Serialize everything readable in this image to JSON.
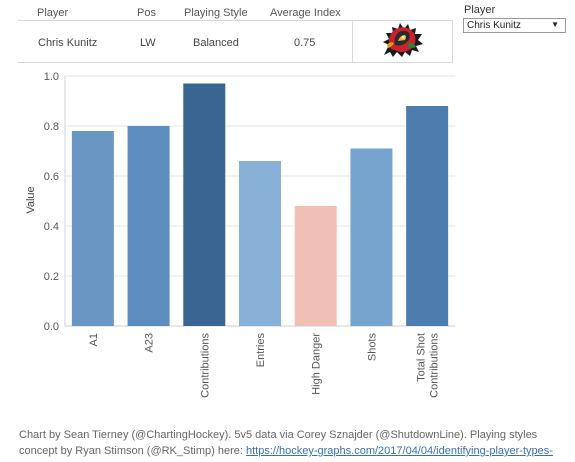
{
  "table": {
    "headers": [
      "Player",
      "Pos",
      "Playing Style",
      "Average Index"
    ],
    "row": [
      "Chris Kunitz",
      "LW",
      "Balanced",
      "0.75"
    ]
  },
  "logo_icon": "blackhawks-logo",
  "player_filter": {
    "label": "Player",
    "selected": "Chris Kunitz"
  },
  "chart_data": {
    "type": "bar",
    "ylabel": "Value",
    "xlabel": "",
    "ylim": [
      0,
      1.0
    ],
    "yticks": [
      "0.0",
      "0.2",
      "0.4",
      "0.6",
      "0.8",
      "1.0"
    ],
    "categories": [
      "A1",
      "A23",
      "Contributions",
      "Entries",
      "High Danger",
      "Shots",
      "Total Shot Contributions"
    ],
    "tick_labels": [
      [
        "A1"
      ],
      [
        "A23"
      ],
      [
        "Contributions"
      ],
      [
        "Entries"
      ],
      [
        "High Danger"
      ],
      [
        "Shots"
      ],
      [
        "Total Shot",
        "Contributions"
      ]
    ],
    "values": [
      0.78,
      0.8,
      0.97,
      0.66,
      0.48,
      0.71,
      0.88
    ],
    "colors": [
      "#6a96c4",
      "#5d8cbe",
      "#3a6592",
      "#89b1d8",
      "#f0c0b4",
      "#76a4ce",
      "#4d7cae"
    ],
    "grid": true
  },
  "footer": {
    "text": "Chart by Sean Tierney (@ChartingHockey). 5v5 data via Corey Sznajder (@ShutdownLine). Playing styles",
    "text2": "concept by Ryan Stimson (@RK_Stimp) here: ",
    "link": "https://hockey-graphs.com/2017/04/04/identifying-player-types-"
  }
}
